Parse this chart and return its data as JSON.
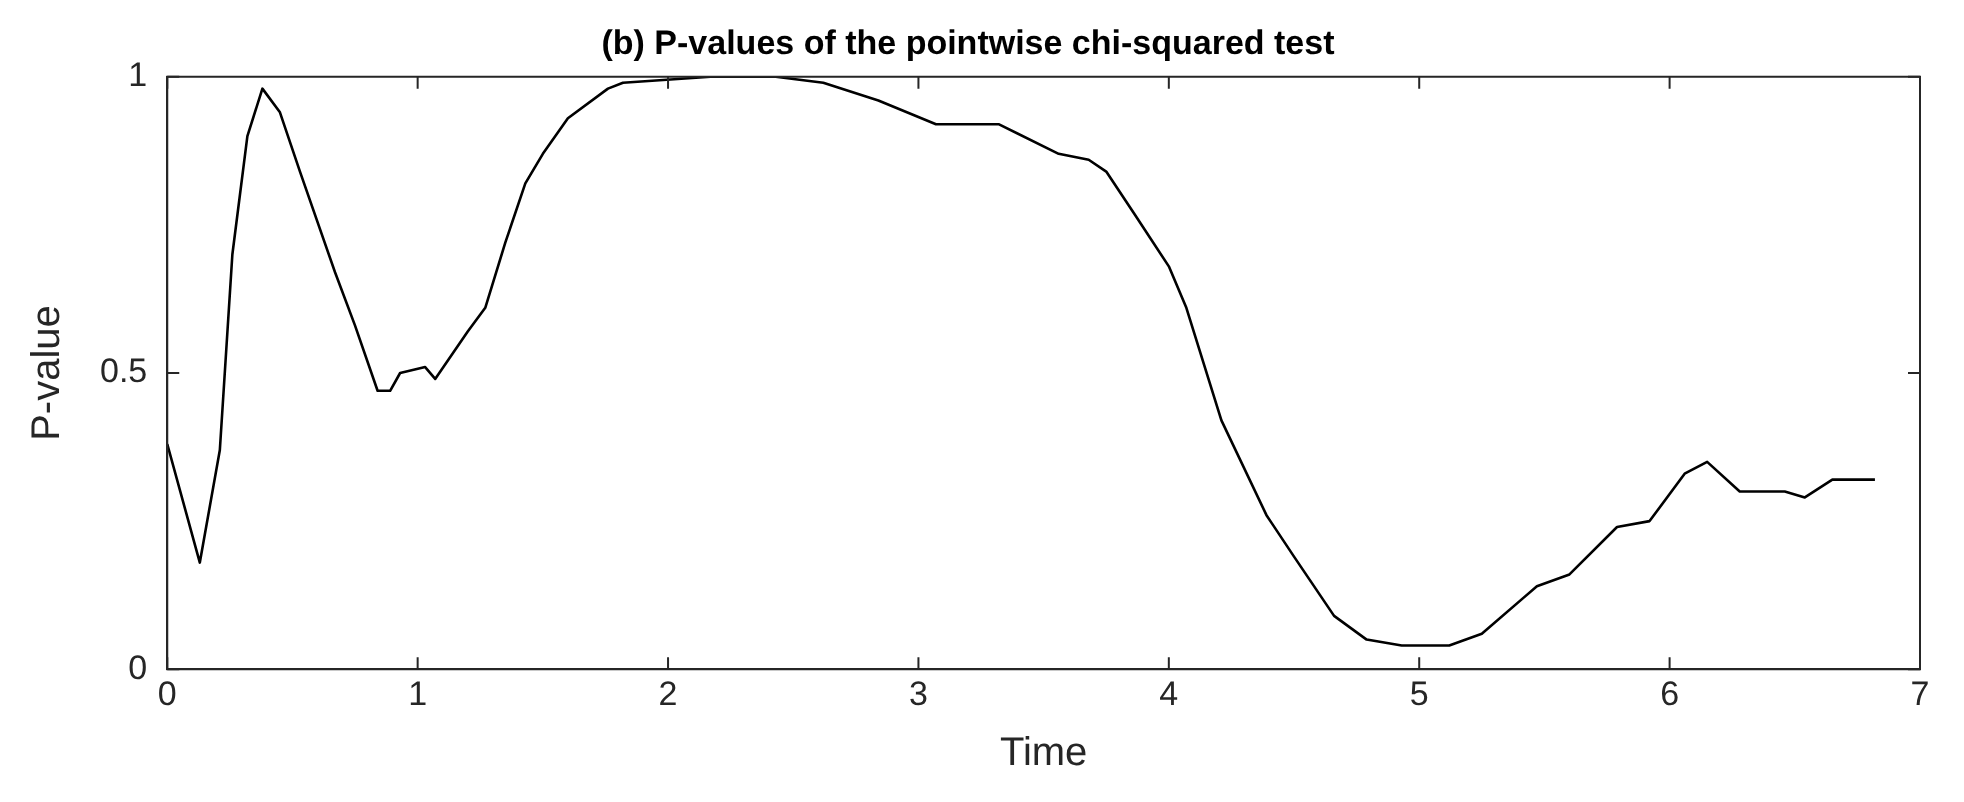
{
  "chart_data": {
    "type": "line",
    "title": "(b) P-values of the pointwise chi-squared test",
    "xlabel": "Time",
    "ylabel": "P-value",
    "x": [
      0,
      0.13,
      0.21,
      0.26,
      0.32,
      0.38,
      0.45,
      0.53,
      0.67,
      0.75,
      0.84,
      0.89,
      0.93,
      1.03,
      1.07,
      1.2,
      1.27,
      1.35,
      1.43,
      1.5,
      1.6,
      1.76,
      1.82,
      2.17,
      2.43,
      2.62,
      2.84,
      3.07,
      3.19,
      3.32,
      3.56,
      3.68,
      3.75,
      3.86,
      4.0,
      4.07,
      4.21,
      4.39,
      4.5,
      4.66,
      4.79,
      4.93,
      5.12,
      5.25,
      5.47,
      5.6,
      5.79,
      5.92,
      6.06,
      6.15,
      6.28,
      6.46,
      6.54,
      6.65,
      6.82
    ],
    "series": [
      {
        "color": "#000000",
        "values": [
          0.38,
          0.18,
          0.37,
          0.7,
          0.9,
          0.98,
          0.94,
          0.84,
          0.67,
          0.58,
          0.47,
          0.47,
          0.5,
          0.51,
          0.49,
          0.57,
          0.61,
          0.72,
          0.82,
          0.87,
          0.93,
          0.98,
          0.99,
          1.0,
          1.0,
          0.99,
          0.96,
          0.92,
          0.92,
          0.92,
          0.87,
          0.86,
          0.84,
          0.77,
          0.68,
          0.61,
          0.42,
          0.26,
          0.19,
          0.09,
          0.05,
          0.04,
          0.04,
          0.06,
          0.14,
          0.16,
          0.24,
          0.25,
          0.33,
          0.35,
          0.3,
          0.3,
          0.29,
          0.32,
          0.32
        ]
      }
    ],
    "xlim": [
      0,
      7
    ],
    "xticks": [
      0,
      1,
      2,
      3,
      4,
      5,
      6,
      7
    ],
    "ylim": [
      0,
      1
    ],
    "yticks": [
      0,
      0.5,
      1
    ],
    "grid": false,
    "legend": false,
    "marker": "none",
    "line_style": "solid"
  }
}
